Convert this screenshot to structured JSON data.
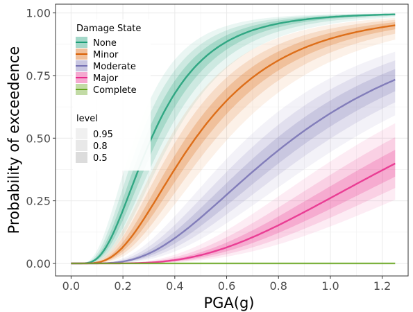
{
  "chart_data": {
    "type": "line",
    "title": "",
    "xlabel": "PGA(g)",
    "ylabel": "Probability of exceedence",
    "xlim": [
      -0.06,
      1.3
    ],
    "ylim": [
      -0.05,
      1.035
    ],
    "x_ticks": [
      0.0,
      0.2,
      0.4,
      0.6,
      0.8,
      1.0,
      1.2
    ],
    "x_tick_labels": [
      "0.0",
      "0.2",
      "0.4",
      "0.6",
      "0.8",
      "1.0",
      "1.2"
    ],
    "y_ticks": [
      0.0,
      0.25,
      0.5,
      0.75,
      1.0
    ],
    "y_tick_labels": [
      "0.00",
      "0.25",
      "0.50",
      "0.75",
      "1.00"
    ],
    "x_range": [
      0.0,
      1.25
    ],
    "grid": true,
    "legend_position": "top-left inside",
    "legend_title": "Damage State",
    "series": [
      {
        "name": "None",
        "color": "#1b9e77",
        "median": 0.31,
        "beta": 0.55,
        "x": [
          0.1,
          0.2,
          0.3,
          0.4,
          0.5,
          0.6,
          0.8,
          1.0,
          1.25
        ],
        "y": [
          0.02,
          0.21,
          0.48,
          0.67,
          0.79,
          0.87,
          0.93,
          0.96,
          0.98
        ]
      },
      {
        "name": "Minor",
        "color": "#d95f02",
        "median": 0.48,
        "beta": 0.58,
        "x": [
          0.1,
          0.2,
          0.3,
          0.4,
          0.5,
          0.6,
          0.8,
          1.0,
          1.25
        ],
        "y": [
          0.0,
          0.06,
          0.21,
          0.38,
          0.53,
          0.65,
          0.8,
          0.87,
          0.91
        ]
      },
      {
        "name": "Moderate",
        "color": "#7570b3",
        "median": 0.86,
        "beta": 0.6,
        "x": [
          0.1,
          0.2,
          0.3,
          0.4,
          0.5,
          0.6,
          0.8,
          1.0,
          1.25
        ],
        "y": [
          0.0,
          0.01,
          0.04,
          0.1,
          0.18,
          0.27,
          0.45,
          0.58,
          0.67
        ]
      },
      {
        "name": "Major",
        "color": "#e7298a",
        "median": 1.45,
        "beta": 0.58,
        "x": [
          0.1,
          0.2,
          0.3,
          0.4,
          0.5,
          0.6,
          0.8,
          1.0,
          1.25
        ],
        "y": [
          0.0,
          0.0,
          0.01,
          0.02,
          0.04,
          0.07,
          0.15,
          0.26,
          0.39
        ]
      },
      {
        "name": "Complete",
        "color": "#66a61e",
        "median": 100,
        "beta": 0.6,
        "x": [
          0.1,
          0.2,
          0.3,
          0.4,
          0.5,
          0.6,
          0.8,
          1.0,
          1.25
        ],
        "y": [
          0,
          0,
          0,
          0,
          0,
          0,
          0,
          0,
          0
        ]
      }
    ],
    "ribbon_legend_title": "level",
    "ribbon_levels": [
      {
        "label": "0.95",
        "opacity": 0.09
      },
      {
        "label": "0.8",
        "opacity": 0.14
      },
      {
        "label": "0.5",
        "opacity": 0.22
      }
    ]
  }
}
